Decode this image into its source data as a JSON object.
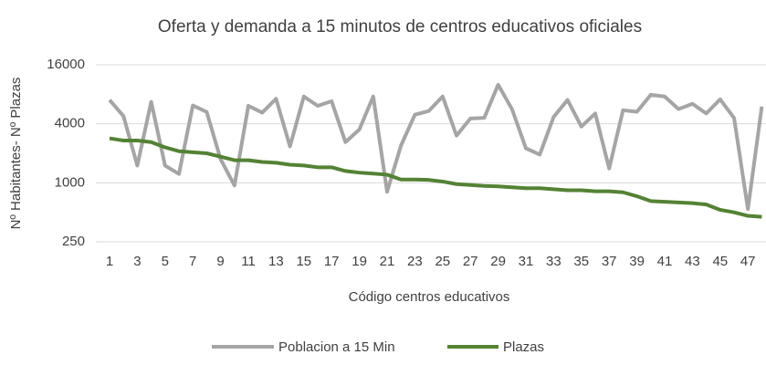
{
  "chart_data": {
    "type": "line",
    "title": "Oferta y demanda a 15 minutos de centros educativos oficiales",
    "x_label": "Código centros educativos",
    "y_label": "Nº Habitantes- Nº Plazas",
    "categories": [
      1,
      null,
      3,
      null,
      5,
      null,
      7,
      null,
      9,
      null,
      11,
      null,
      13,
      null,
      15,
      null,
      17,
      null,
      19,
      null,
      21,
      null,
      23,
      null,
      25,
      null,
      27,
      null,
      29,
      null,
      31,
      null,
      33,
      null,
      35,
      null,
      37,
      null,
      39,
      null,
      41,
      null,
      43,
      null,
      45,
      null,
      47,
      null
    ],
    "series": [
      {
        "name": "Poblacion a 15 Min",
        "color": "#a5a5a5",
        "values": [
          7000,
          4800,
          1500,
          6700,
          1500,
          1230,
          6150,
          5280,
          1740,
          940,
          6100,
          5200,
          7200,
          2350,
          7600,
          6100,
          6800,
          2600,
          3500,
          7600,
          810,
          2400,
          4950,
          5400,
          7600,
          3030,
          4530,
          4600,
          10000,
          5650,
          2250,
          1940,
          4700,
          7000,
          3750,
          5100,
          1400,
          5500,
          5300,
          7900,
          7600,
          5650,
          6400,
          5100,
          7100,
          4600,
          540,
          6000
        ]
      },
      {
        "name": "Plazas",
        "color": "#548235",
        "values": [
          2840,
          2700,
          2700,
          2600,
          2300,
          2100,
          2050,
          2000,
          1850,
          1700,
          1700,
          1630,
          1600,
          1530,
          1500,
          1440,
          1440,
          1320,
          1270,
          1240,
          1210,
          1080,
          1080,
          1070,
          1030,
          970,
          950,
          930,
          920,
          900,
          880,
          880,
          860,
          840,
          840,
          820,
          820,
          800,
          730,
          650,
          640,
          630,
          620,
          600,
          530,
          500,
          460,
          450
        ]
      }
    ],
    "ylim": [
      250,
      16000
    ],
    "yticks": [
      250,
      1000,
      4000,
      16000
    ],
    "log_scale": true,
    "grid": true,
    "legend": "bottom"
  }
}
